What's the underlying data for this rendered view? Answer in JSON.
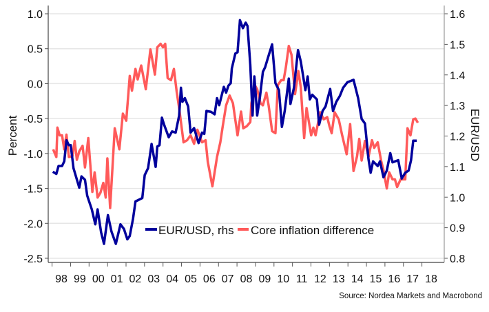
{
  "chart_data": {
    "type": "line",
    "title": "",
    "xlabel": "",
    "ylabel": "Percent",
    "ylabel_right": "EUR/USD",
    "xlim": [
      1998,
      2019
    ],
    "ylim": [
      -2.5,
      1.0
    ],
    "ylim_right": [
      0.8,
      1.6
    ],
    "x_tick_labels": [
      "98",
      "99",
      "00",
      "01",
      "02",
      "03",
      "04",
      "05",
      "06",
      "07",
      "08",
      "09",
      "10",
      "11",
      "12",
      "13",
      "14",
      "15",
      "16",
      "17",
      "18"
    ],
    "y_ticks": [
      "1.0",
      "0.5",
      "0.0",
      "-0.5",
      "-1.0",
      "-1.5",
      "-2.0",
      "-2.5"
    ],
    "y_ticks_right": [
      "1.6",
      "1.5",
      "1.4",
      "1.3",
      "1.2",
      "1.1",
      "1.0",
      "0.9",
      "0.8"
    ],
    "grid": true,
    "legend_placement": "bottom-center",
    "source": "Source: Nordea Markets and Macrobond",
    "series": [
      {
        "name": "EUR/USD, rhs",
        "axis": "right",
        "color": "#00009c",
        "points": [
          [
            1998.04,
            1.083
          ],
          [
            1998.23,
            1.076
          ],
          [
            1998.35,
            1.102
          ],
          [
            1998.54,
            1.102
          ],
          [
            1998.66,
            1.117
          ],
          [
            1998.78,
            1.186
          ],
          [
            1998.91,
            1.17
          ],
          [
            1999.01,
            1.17
          ],
          [
            1999.16,
            1.095
          ],
          [
            1999.47,
            1.031
          ],
          [
            1999.59,
            1.068
          ],
          [
            1999.78,
            1.057
          ],
          [
            1999.9,
            1.005
          ],
          [
            2000.15,
            0.96
          ],
          [
            2000.34,
            0.911
          ],
          [
            2000.46,
            0.96
          ],
          [
            2000.65,
            0.885
          ],
          [
            2000.81,
            0.847
          ],
          [
            2001.02,
            0.941
          ],
          [
            2001.21,
            0.888
          ],
          [
            2001.45,
            0.847
          ],
          [
            2001.7,
            0.911
          ],
          [
            2001.89,
            0.896
          ],
          [
            2002.07,
            0.862
          ],
          [
            2002.2,
            0.873
          ],
          [
            2002.38,
            0.93
          ],
          [
            2002.51,
            0.986
          ],
          [
            2002.88,
            0.997
          ],
          [
            2003.01,
            1.072
          ],
          [
            2003.19,
            1.095
          ],
          [
            2003.38,
            1.174
          ],
          [
            2003.6,
            1.099
          ],
          [
            2003.69,
            1.166
          ],
          [
            2003.81,
            1.17
          ],
          [
            2003.94,
            1.26
          ],
          [
            2004.06,
            1.237
          ],
          [
            2004.31,
            1.196
          ],
          [
            2004.49,
            1.215
          ],
          [
            2004.68,
            1.211
          ],
          [
            2004.87,
            1.267
          ],
          [
            2004.97,
            1.358
          ],
          [
            2005.05,
            1.312
          ],
          [
            2005.18,
            1.324
          ],
          [
            2005.36,
            1.297
          ],
          [
            2005.49,
            1.211
          ],
          [
            2005.68,
            1.226
          ],
          [
            2005.92,
            1.177
          ],
          [
            2006.11,
            1.211
          ],
          [
            2006.23,
            1.207
          ],
          [
            2006.35,
            1.282
          ],
          [
            2006.6,
            1.279
          ],
          [
            2006.79,
            1.271
          ],
          [
            2006.92,
            1.324
          ],
          [
            2007.04,
            1.301
          ],
          [
            2007.29,
            1.361
          ],
          [
            2007.41,
            1.342
          ],
          [
            2007.54,
            1.365
          ],
          [
            2007.66,
            1.373
          ],
          [
            2007.72,
            1.421
          ],
          [
            2007.91,
            1.47
          ],
          [
            2008.03,
            1.474
          ],
          [
            2008.16,
            1.579
          ],
          [
            2008.32,
            1.553
          ],
          [
            2008.47,
            1.571
          ],
          [
            2008.57,
            1.56
          ],
          [
            2008.72,
            1.433
          ],
          [
            2008.84,
            1.267
          ],
          [
            2008.94,
            1.395
          ],
          [
            2009.03,
            1.32
          ],
          [
            2009.09,
            1.267
          ],
          [
            2009.24,
            1.327
          ],
          [
            2009.4,
            1.41
          ],
          [
            2009.52,
            1.425
          ],
          [
            2009.71,
            1.463
          ],
          [
            2009.9,
            1.5
          ],
          [
            2010.08,
            1.373
          ],
          [
            2010.27,
            1.35
          ],
          [
            2010.43,
            1.23
          ],
          [
            2010.58,
            1.282
          ],
          [
            2010.8,
            1.388
          ],
          [
            2010.89,
            1.305
          ],
          [
            2011.08,
            1.358
          ],
          [
            2011.3,
            1.481
          ],
          [
            2011.45,
            1.444
          ],
          [
            2011.7,
            1.35
          ],
          [
            2011.82,
            1.395
          ],
          [
            2011.94,
            1.32
          ],
          [
            2012.07,
            1.335
          ],
          [
            2012.32,
            1.32
          ],
          [
            2012.44,
            1.237
          ],
          [
            2012.63,
            1.282
          ],
          [
            2012.79,
            1.297
          ],
          [
            2013.04,
            1.354
          ],
          [
            2013.19,
            1.282
          ],
          [
            2013.37,
            1.312
          ],
          [
            2013.56,
            1.331
          ],
          [
            2013.74,
            1.358
          ],
          [
            2013.97,
            1.376
          ],
          [
            2014.3,
            1.384
          ],
          [
            2014.55,
            1.324
          ],
          [
            2014.74,
            1.256
          ],
          [
            2014.92,
            1.241
          ],
          [
            2015.11,
            1.125
          ],
          [
            2015.23,
            1.08
          ],
          [
            2015.36,
            1.117
          ],
          [
            2015.61,
            1.102
          ],
          [
            2015.73,
            1.117
          ],
          [
            2015.92,
            1.065
          ],
          [
            2016.1,
            1.087
          ],
          [
            2016.29,
            1.144
          ],
          [
            2016.41,
            1.114
          ],
          [
            2016.72,
            1.121
          ],
          [
            2016.91,
            1.061
          ],
          [
            2017.1,
            1.08
          ],
          [
            2017.28,
            1.087
          ],
          [
            2017.41,
            1.121
          ],
          [
            2017.53,
            1.185
          ],
          [
            2017.72,
            1.185
          ]
        ]
      },
      {
        "name": "Core inflation difference",
        "axis": "left",
        "color": "#ff5a5a",
        "points": [
          [
            1998.06,
            -0.94
          ],
          [
            1998.23,
            -1.05
          ],
          [
            1998.29,
            -0.63
          ],
          [
            1998.41,
            -0.74
          ],
          [
            1998.54,
            -0.74
          ],
          [
            1998.66,
            -0.94
          ],
          [
            1998.78,
            -0.73
          ],
          [
            1998.91,
            -1.05
          ],
          [
            1999.1,
            -1.04
          ],
          [
            1999.22,
            -0.82
          ],
          [
            1999.34,
            -1.09
          ],
          [
            1999.47,
            -0.97
          ],
          [
            1999.65,
            -0.89
          ],
          [
            1999.78,
            -1.2
          ],
          [
            1999.96,
            -0.78
          ],
          [
            2000.18,
            -1.55
          ],
          [
            2000.3,
            -1.27
          ],
          [
            2000.46,
            -1.63
          ],
          [
            2000.62,
            -1.56
          ],
          [
            2000.77,
            -1.42
          ],
          [
            2000.9,
            -1.63
          ],
          [
            2000.99,
            -1.07
          ],
          [
            2001.14,
            -1.78
          ],
          [
            2001.39,
            -0.64
          ],
          [
            2001.64,
            -0.94
          ],
          [
            2001.83,
            -0.43
          ],
          [
            2002.01,
            -0.53
          ],
          [
            2002.2,
            0.11
          ],
          [
            2002.32,
            -0.1
          ],
          [
            2002.51,
            0.21
          ],
          [
            2002.63,
            0.06
          ],
          [
            2002.82,
            0.26
          ],
          [
            2003.07,
            -0.08
          ],
          [
            2003.32,
            0.49
          ],
          [
            2003.44,
            0.31
          ],
          [
            2003.56,
            0.13
          ],
          [
            2003.69,
            0.52
          ],
          [
            2003.87,
            0.57
          ],
          [
            2004.0,
            0.52
          ],
          [
            2004.12,
            0.57
          ],
          [
            2004.25,
            0.08
          ],
          [
            2004.43,
            0.05
          ],
          [
            2004.59,
            0.21
          ],
          [
            2004.74,
            -0.12
          ],
          [
            2004.87,
            -0.35
          ],
          [
            2005.11,
            -0.84
          ],
          [
            2005.3,
            -0.81
          ],
          [
            2005.49,
            -0.74
          ],
          [
            2005.68,
            -0.86
          ],
          [
            2005.86,
            -0.66
          ],
          [
            2006.11,
            -0.84
          ],
          [
            2006.3,
            -0.81
          ],
          [
            2006.42,
            -1.12
          ],
          [
            2006.67,
            -1.47
          ],
          [
            2006.92,
            -1.05
          ],
          [
            2007.1,
            -0.84
          ],
          [
            2007.23,
            -0.61
          ],
          [
            2007.41,
            -0.31
          ],
          [
            2007.6,
            -0.17
          ],
          [
            2007.78,
            -0.28
          ],
          [
            2008.03,
            -0.74
          ],
          [
            2008.22,
            -0.4
          ],
          [
            2008.34,
            -0.64
          ],
          [
            2008.53,
            -0.61
          ],
          [
            2008.72,
            -0.55
          ],
          [
            2008.78,
            -0.28
          ],
          [
            2008.96,
            -0.02
          ],
          [
            2009.09,
            -0.08
          ],
          [
            2009.27,
            -0.28
          ],
          [
            2009.4,
            -0.31
          ],
          [
            2009.59,
            -0.13
          ],
          [
            2009.71,
            -0.31
          ],
          [
            2009.9,
            -0.68
          ],
          [
            2010.08,
            -0.71
          ],
          [
            2010.21,
            -0.02
          ],
          [
            2010.39,
            0.05
          ],
          [
            2010.52,
            0.05
          ],
          [
            2010.64,
            0.23
          ],
          [
            2010.8,
            0.54
          ],
          [
            2010.95,
            0.41
          ],
          [
            2011.14,
            -0.15
          ],
          [
            2011.32,
            0.18
          ],
          [
            2011.45,
            -0.05
          ],
          [
            2011.63,
            -0.78
          ],
          [
            2011.76,
            -0.35
          ],
          [
            2012.01,
            -0.74
          ],
          [
            2012.13,
            -0.63
          ],
          [
            2012.25,
            -0.74
          ],
          [
            2012.5,
            -0.41
          ],
          [
            2012.69,
            -0.51
          ],
          [
            2012.88,
            -0.48
          ],
          [
            2013.0,
            -0.61
          ],
          [
            2013.12,
            -0.71
          ],
          [
            2013.28,
            -0.41
          ],
          [
            2013.5,
            -0.51
          ],
          [
            2013.68,
            -0.73
          ],
          [
            2013.93,
            -1.01
          ],
          [
            2014.12,
            -0.58
          ],
          [
            2014.3,
            -1.25
          ],
          [
            2014.49,
            -1.04
          ],
          [
            2014.61,
            -0.79
          ],
          [
            2014.74,
            -1.1
          ],
          [
            2014.92,
            -0.82
          ],
          [
            2015.11,
            -1.05
          ],
          [
            2015.3,
            -0.81
          ],
          [
            2015.42,
            -0.92
          ],
          [
            2015.61,
            -0.84
          ],
          [
            2015.79,
            -1.1
          ],
          [
            2015.92,
            -1.24
          ],
          [
            2016.1,
            -1.5
          ],
          [
            2016.23,
            -1.27
          ],
          [
            2016.41,
            -1.37
          ],
          [
            2016.54,
            -1.37
          ],
          [
            2016.66,
            -1.48
          ],
          [
            2016.85,
            -1.37
          ],
          [
            2017.1,
            -1.37
          ],
          [
            2017.22,
            -0.64
          ],
          [
            2017.38,
            -0.74
          ],
          [
            2017.53,
            -0.51
          ],
          [
            2017.65,
            -0.5
          ],
          [
            2017.78,
            -0.56
          ]
        ]
      }
    ]
  }
}
